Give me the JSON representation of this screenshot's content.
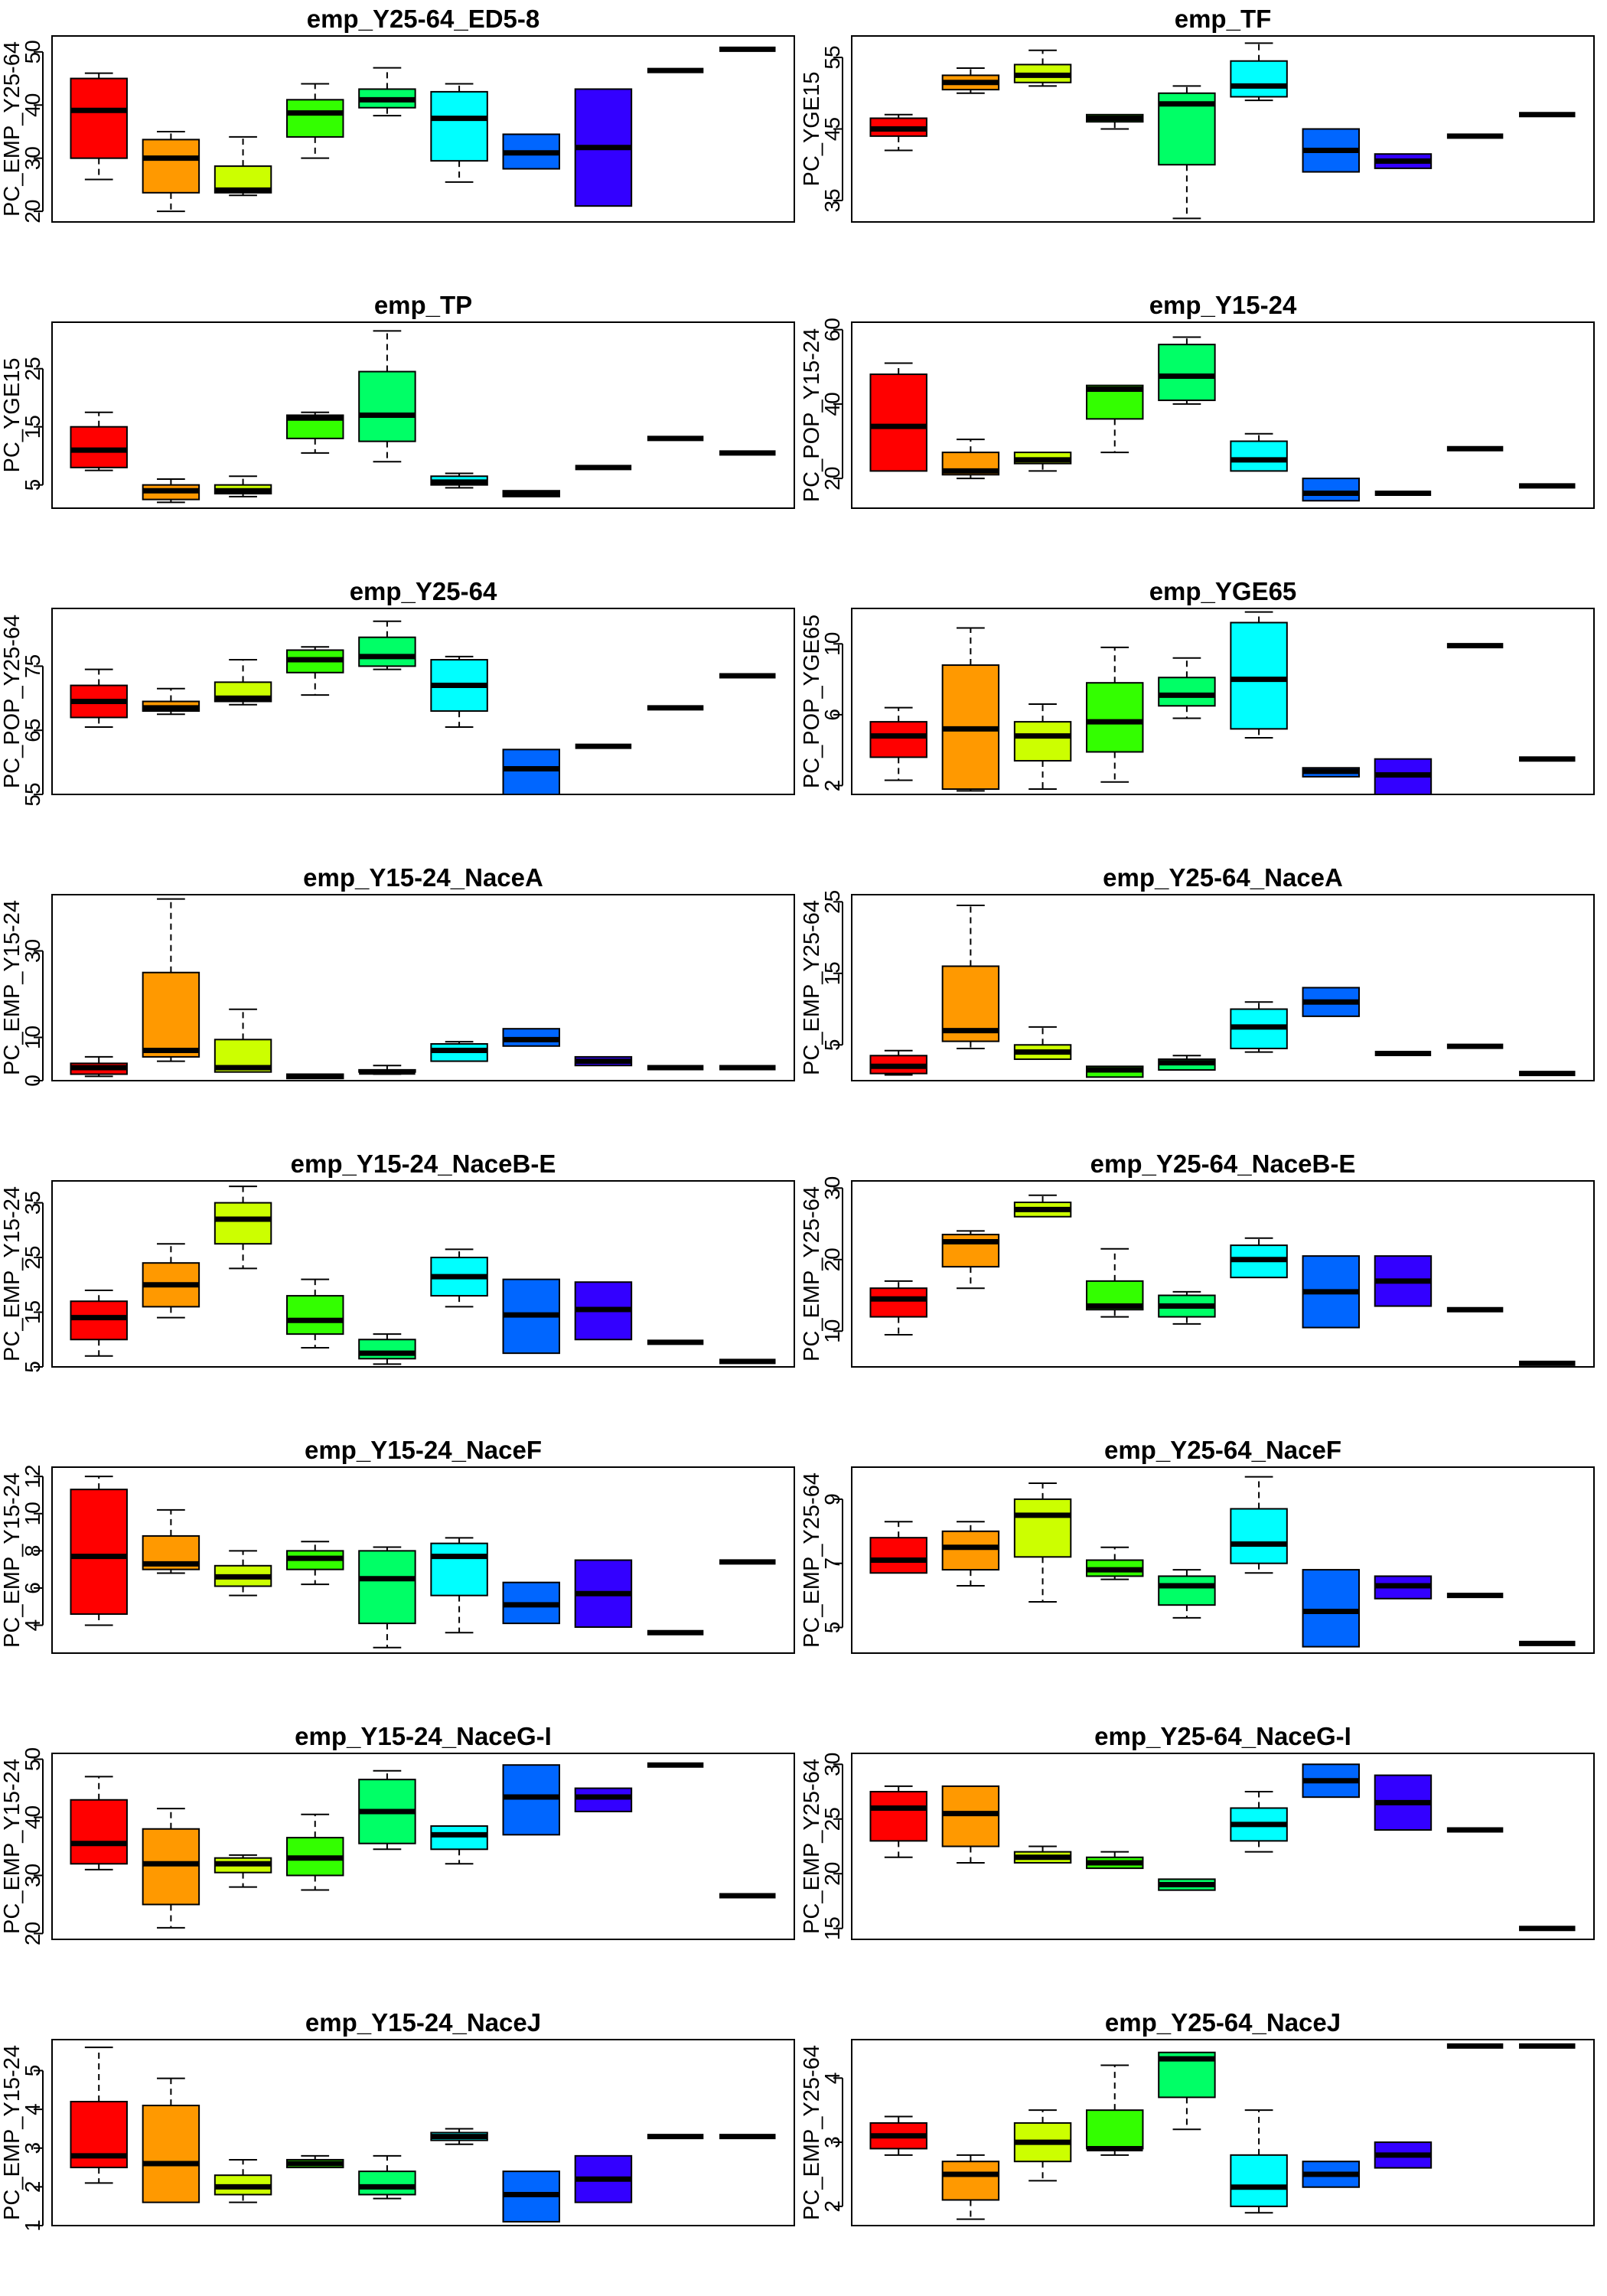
{
  "chart_data": [
    {
      "type": "box",
      "title": "emp_Y25-64_ED5-8",
      "ylabel": "PC_EMP_Y25-64",
      "ylim": [
        18,
        53
      ],
      "yticks": [
        20,
        30,
        40,
        50
      ],
      "boxes": [
        [
          26,
          30,
          39,
          45,
          46
        ],
        [
          20,
          23.5,
          30,
          33.5,
          35
        ],
        [
          23,
          23.5,
          24,
          28.5,
          34
        ],
        [
          30,
          34,
          38.5,
          41,
          44
        ],
        [
          38,
          39.5,
          41,
          43,
          47
        ],
        [
          25.5,
          29.5,
          37.5,
          42.5,
          44
        ],
        [
          28,
          28,
          31,
          34.5,
          34.5
        ],
        [
          21,
          21,
          32,
          43,
          43
        ],
        [
          46.5,
          46.5,
          46.5,
          46.5,
          46.5
        ],
        [
          50.5,
          50.5,
          50.5,
          50.5,
          50.5
        ]
      ]
    },
    {
      "type": "box",
      "title": "emp_TF",
      "ylabel": "PC_YGE15",
      "ylim": [
        32,
        58
      ],
      "yticks": [
        35,
        45,
        55
      ],
      "boxes": [
        [
          42,
          44,
          45,
          46.5,
          47
        ],
        [
          50,
          50.5,
          51.5,
          52.5,
          53.5
        ],
        [
          51,
          51.5,
          52.5,
          54,
          56
        ],
        [
          45,
          46,
          46.5,
          47,
          47
        ],
        [
          32.5,
          40,
          48.5,
          50,
          51
        ],
        [
          49,
          49.5,
          51,
          54.5,
          57
        ],
        [
          39,
          39,
          42,
          45,
          45
        ],
        [
          39.5,
          39.5,
          40.5,
          41.5,
          41.5
        ],
        [
          44,
          44,
          44,
          44,
          44
        ],
        [
          47,
          47,
          47,
          47,
          47
        ]
      ]
    },
    {
      "type": "box",
      "title": "emp_TP",
      "ylabel": "PC_YGE15",
      "ylim": [
        1,
        33
      ],
      "yticks": [
        5,
        15,
        25
      ],
      "boxes": [
        [
          7.5,
          8,
          11,
          15,
          17.5
        ],
        [
          2,
          2.5,
          4,
          5,
          6
        ],
        [
          3,
          3.5,
          4,
          5,
          6.5
        ],
        [
          10.5,
          13,
          16.5,
          17,
          17.5
        ],
        [
          9,
          12.5,
          17,
          24.5,
          31.5
        ],
        [
          4.5,
          5,
          5.5,
          6.5,
          7
        ],
        [
          3,
          3,
          3.5,
          4,
          4
        ],
        [
          8,
          8,
          8,
          8,
          8
        ],
        [
          13,
          13,
          13,
          13,
          13
        ],
        [
          10.5,
          10.5,
          10.5,
          10.5,
          10.5
        ]
      ]
    },
    {
      "type": "box",
      "title": "emp_Y15-24",
      "ylabel": "PC_POP_Y15-24",
      "ylim": [
        12,
        62
      ],
      "yticks": [
        20,
        40,
        60
      ],
      "boxes": [
        [
          22,
          22,
          34,
          48,
          51
        ],
        [
          20,
          21,
          22,
          27,
          30.5
        ],
        [
          22,
          24,
          25,
          27,
          27
        ],
        [
          27,
          36,
          44,
          45,
          45
        ],
        [
          40,
          41,
          47.5,
          56,
          58
        ],
        [
          22,
          22,
          25,
          30,
          32
        ],
        [
          14,
          14,
          16,
          20,
          20
        ],
        [
          16,
          16,
          16,
          16,
          16
        ],
        [
          28,
          28,
          28,
          28,
          28
        ],
        [
          18,
          18,
          18,
          18,
          18
        ]
      ]
    },
    {
      "type": "box",
      "title": "emp_Y25-64",
      "ylabel": "PC_POP_Y25-64",
      "ylim": [
        55,
        84
      ],
      "yticks": [
        55,
        65,
        75
      ],
      "boxes": [
        [
          65.5,
          67,
          69.5,
          72,
          74.5
        ],
        [
          67.5,
          68,
          68.5,
          69.5,
          71.5
        ],
        [
          69,
          69.5,
          70,
          72.5,
          76
        ],
        [
          70.5,
          74,
          76,
          77.5,
          78
        ],
        [
          74.5,
          75,
          76.5,
          79.5,
          82
        ],
        [
          65.5,
          68,
          72,
          76,
          76.5
        ],
        [
          55,
          55,
          59,
          62,
          62
        ],
        [
          62.5,
          62.5,
          62.5,
          62.5,
          62.5
        ],
        [
          68.5,
          68.5,
          68.5,
          68.5,
          68.5
        ],
        [
          73.5,
          73.5,
          73.5,
          73.5,
          73.5
        ]
      ]
    },
    {
      "type": "box",
      "title": "emp_YGE65",
      "ylabel": "PC_POP_YGE65",
      "ylim": [
        1.5,
        12
      ],
      "yticks": [
        2,
        6,
        10
      ],
      "boxes": [
        [
          2.3,
          3.6,
          4.8,
          5.6,
          6.4
        ],
        [
          1.7,
          1.8,
          5.2,
          8.8,
          10.9
        ],
        [
          1.8,
          3.4,
          4.8,
          5.6,
          6.6
        ],
        [
          2.2,
          3.9,
          5.6,
          7.8,
          9.8
        ],
        [
          5.8,
          6.5,
          7.1,
          8.1,
          9.2
        ],
        [
          4.7,
          5.2,
          8,
          11.2,
          11.8
        ],
        [
          2.5,
          2.5,
          2.8,
          3,
          3
        ],
        [
          1.5,
          1.5,
          2.6,
          3.5,
          3.5
        ],
        [
          9.9,
          9.9,
          9.9,
          9.9,
          9.9
        ],
        [
          3.5,
          3.5,
          3.5,
          3.5,
          3.5
        ]
      ]
    },
    {
      "type": "box",
      "title": "emp_Y15-24_NaceA",
      "ylabel": "PC_EMP_Y15-24",
      "ylim": [
        0,
        43
      ],
      "yticks": [
        0,
        10,
        30
      ],
      "boxes": [
        [
          1,
          1.5,
          3,
          4,
          5.5
        ],
        [
          4.5,
          5.5,
          7,
          25,
          42
        ],
        [
          2,
          2,
          3,
          9.5,
          16.5
        ],
        [
          0.5,
          0.5,
          1,
          1.5,
          1.5
        ],
        [
          1.5,
          2,
          2,
          2.5,
          3.5
        ],
        [
          4.5,
          4.5,
          7,
          8.5,
          9
        ],
        [
          8,
          8,
          9.5,
          12,
          12
        ],
        [
          3.5,
          3.5,
          4.5,
          5.5,
          5.5
        ],
        [
          3,
          3,
          3,
          3,
          3
        ],
        [
          3,
          3,
          3,
          3,
          3
        ]
      ]
    },
    {
      "type": "box",
      "title": "emp_Y25-64_NaceA",
      "ylabel": "PC_EMP_Y25-64",
      "ylim": [
        0,
        26
      ],
      "yticks": [
        5,
        15,
        25
      ],
      "boxes": [
        [
          0.8,
          1,
          2,
          3.5,
          4.2
        ],
        [
          4.5,
          5.5,
          7,
          16,
          24.5
        ],
        [
          3,
          3,
          4,
          5,
          7.5
        ],
        [
          0.5,
          0.5,
          1.5,
          2,
          2
        ],
        [
          1.5,
          1.5,
          2.5,
          3,
          3.5
        ],
        [
          4,
          4.5,
          7.5,
          10,
          11
        ],
        [
          9,
          9,
          11,
          13,
          13
        ],
        [
          3.8,
          3.8,
          3.8,
          3.8,
          3.8
        ],
        [
          4.8,
          4.8,
          4.8,
          4.8,
          4.8
        ],
        [
          1,
          1,
          1,
          1,
          1
        ]
      ]
    },
    {
      "type": "box",
      "title": "emp_Y15-24_NaceB-E",
      "ylabel": "PC_EMP_Y15-24",
      "ylim": [
        5,
        39
      ],
      "yticks": [
        5,
        15,
        25,
        35
      ],
      "boxes": [
        [
          7,
          10,
          14,
          17,
          19
        ],
        [
          14,
          16,
          20,
          24,
          27.5
        ],
        [
          23,
          27.5,
          32,
          35,
          38
        ],
        [
          8.5,
          11,
          13.5,
          18,
          21
        ],
        [
          5.5,
          6.5,
          7.5,
          10,
          11
        ],
        [
          16,
          18,
          21.5,
          25,
          26.5
        ],
        [
          7.5,
          7.5,
          14.5,
          21,
          21
        ],
        [
          10,
          10,
          15.5,
          20.5,
          20.5
        ],
        [
          9.5,
          9.5,
          9.5,
          9.5,
          9.5
        ],
        [
          6,
          6,
          6,
          6,
          6
        ]
      ]
    },
    {
      "type": "box",
      "title": "emp_Y25-64_NaceB-E",
      "ylabel": "PC_EMP_Y25-64",
      "ylim": [
        5,
        31
      ],
      "yticks": [
        10,
        20,
        30
      ],
      "boxes": [
        [
          9.5,
          12,
          14.5,
          16,
          17
        ],
        [
          16,
          19,
          22.5,
          23.5,
          24
        ],
        [
          26,
          26,
          27,
          28,
          29
        ],
        [
          12,
          13,
          13.5,
          17,
          21.5
        ],
        [
          11,
          12,
          13.5,
          15,
          15.5
        ],
        [
          17.5,
          17.5,
          20,
          22,
          23
        ],
        [
          10.5,
          10.5,
          15.5,
          20.5,
          20.5
        ],
        [
          13.5,
          13.5,
          17,
          20.5,
          20.5
        ],
        [
          13,
          13,
          13,
          13,
          13
        ],
        [
          5.5,
          5.5,
          5.5,
          5.5,
          5.5
        ]
      ]
    },
    {
      "type": "box",
      "title": "emp_Y15-24_NaceF",
      "ylabel": "PC_EMP_Y15-24",
      "ylim": [
        2.5,
        12.5
      ],
      "yticks": [
        4,
        6,
        8,
        10,
        12
      ],
      "boxes": [
        [
          4,
          4.6,
          7.7,
          11.3,
          12
        ],
        [
          6.8,
          7,
          7.3,
          8.8,
          10.2
        ],
        [
          5.6,
          6.1,
          6.6,
          7.2,
          8
        ],
        [
          6.2,
          7,
          7.6,
          8,
          8.5
        ],
        [
          2.8,
          4.1,
          6.5,
          8,
          8.2
        ],
        [
          3.6,
          5.6,
          7.7,
          8.4,
          8.7
        ],
        [
          4.1,
          4.1,
          5.1,
          6.3,
          6.3
        ],
        [
          3.9,
          3.9,
          5.7,
          7.5,
          7.5
        ],
        [
          3.6,
          3.6,
          3.6,
          3.6,
          3.6
        ],
        [
          7.4,
          7.4,
          7.4,
          7.4,
          7.4
        ]
      ]
    },
    {
      "type": "box",
      "title": "emp_Y25-64_NaceF",
      "ylabel": "PC_EMP_Y25-64",
      "ylim": [
        4.2,
        10
      ],
      "yticks": [
        5,
        7,
        9
      ],
      "boxes": [
        [
          6.7,
          6.7,
          7.1,
          7.8,
          8.3
        ],
        [
          6.3,
          6.8,
          7.5,
          8,
          8.3
        ],
        [
          5.8,
          7.2,
          8.5,
          9,
          9.5
        ],
        [
          6.5,
          6.6,
          6.8,
          7.1,
          7.5
        ],
        [
          5.3,
          5.7,
          6.3,
          6.6,
          6.8
        ],
        [
          6.7,
          7,
          7.6,
          8.7,
          9.7
        ],
        [
          4.4,
          4.4,
          5.5,
          6.8,
          6.8
        ],
        [
          5.9,
          5.9,
          6.3,
          6.6,
          6.6
        ],
        [
          6,
          6,
          6,
          6,
          6
        ],
        [
          4.5,
          4.5,
          4.5,
          4.5,
          4.5
        ]
      ]
    },
    {
      "type": "box",
      "title": "emp_Y15-24_NaceG-I",
      "ylabel": "PC_EMP_Y15-24",
      "ylim": [
        19,
        51
      ],
      "yticks": [
        20,
        30,
        40,
        50
      ],
      "boxes": [
        [
          31,
          32,
          35.5,
          43,
          47
        ],
        [
          21,
          25,
          32,
          38,
          41.5
        ],
        [
          28,
          30.5,
          32,
          33,
          33.5
        ],
        [
          27.5,
          30,
          33,
          36.5,
          40.5
        ],
        [
          34.5,
          35.5,
          41,
          46.5,
          48
        ],
        [
          32,
          34.5,
          37,
          38.5,
          38.5
        ],
        [
          37,
          37,
          43.5,
          49,
          49
        ],
        [
          41,
          41,
          43.5,
          45,
          45
        ],
        [
          49,
          49,
          49,
          49,
          49
        ],
        [
          26.5,
          26.5,
          26.5,
          26.5,
          26.5
        ]
      ]
    },
    {
      "type": "box",
      "title": "emp_Y25-64_NaceG-I",
      "ylabel": "PC_EMP_Y25-64",
      "ylim": [
        14,
        31
      ],
      "yticks": [
        15,
        20,
        25,
        30
      ],
      "boxes": [
        [
          21.5,
          23,
          26,
          27.5,
          28
        ],
        [
          21,
          22.5,
          25.5,
          28,
          28
        ],
        [
          21,
          21,
          21.5,
          22,
          22.5
        ],
        [
          20.5,
          20.5,
          21,
          21.5,
          22
        ],
        [
          18.5,
          18.5,
          19,
          19.5,
          19.5
        ],
        [
          22,
          23,
          24.5,
          26,
          27.5
        ],
        [
          27,
          27,
          28.5,
          30,
          30
        ],
        [
          24,
          24,
          26.5,
          29,
          29
        ],
        [
          24,
          24,
          24,
          24,
          24
        ],
        [
          15,
          15,
          15,
          15,
          15
        ]
      ]
    },
    {
      "type": "box",
      "title": "emp_Y15-24_NaceJ",
      "ylabel": "PC_EMP_Y15-24",
      "ylim": [
        1,
        5.8
      ],
      "yticks": [
        1,
        2,
        3,
        4,
        5
      ],
      "boxes": [
        [
          2.1,
          2.5,
          2.8,
          4.2,
          5.6
        ],
        [
          1.6,
          1.6,
          2.6,
          4.1,
          4.8
        ],
        [
          1.6,
          1.8,
          2,
          2.3,
          2.7
        ],
        [
          2.5,
          2.5,
          2.6,
          2.7,
          2.8
        ],
        [
          1.7,
          1.8,
          2,
          2.4,
          2.8
        ],
        [
          3.1,
          3.2,
          3.3,
          3.4,
          3.5
        ],
        [
          1.1,
          1.1,
          1.8,
          2.4,
          2.4
        ],
        [
          1.6,
          1.6,
          2.2,
          2.8,
          2.8
        ],
        [
          3.3,
          3.3,
          3.3,
          3.3,
          3.3
        ],
        [
          3.3,
          3.3,
          3.3,
          3.3,
          3.3
        ]
      ]
    },
    {
      "type": "box",
      "title": "emp_Y25-64_NaceJ",
      "ylabel": "PC_EMP_Y25-64",
      "ylim": [
        1.7,
        4.6
      ],
      "yticks": [
        2.0,
        3.0,
        4.0
      ],
      "boxes": [
        [
          2.8,
          2.9,
          3.1,
          3.3,
          3.4
        ],
        [
          1.8,
          2.1,
          2.5,
          2.7,
          2.8
        ],
        [
          2.4,
          2.7,
          3,
          3.3,
          3.5
        ],
        [
          2.8,
          2.9,
          2.9,
          3.5,
          4.2
        ],
        [
          3.2,
          3.7,
          4.3,
          4.4,
          4.4
        ],
        [
          1.9,
          2,
          2.3,
          2.8,
          3.5
        ],
        [
          2.3,
          2.3,
          2.5,
          2.7,
          2.7
        ],
        [
          2.6,
          2.6,
          2.8,
          3,
          3
        ],
        [
          4.5,
          4.5,
          4.5,
          4.5,
          4.5
        ],
        [
          4.5,
          4.5,
          4.5,
          4.5,
          4.5
        ]
      ]
    }
  ],
  "colors": [
    "#FF0000",
    "#FF9900",
    "#CCFF00",
    "#33FF00",
    "#00FF66",
    "#00FFFF",
    "#0066FF",
    "#3300FF",
    "#CC00FF",
    "#FF0099"
  ]
}
